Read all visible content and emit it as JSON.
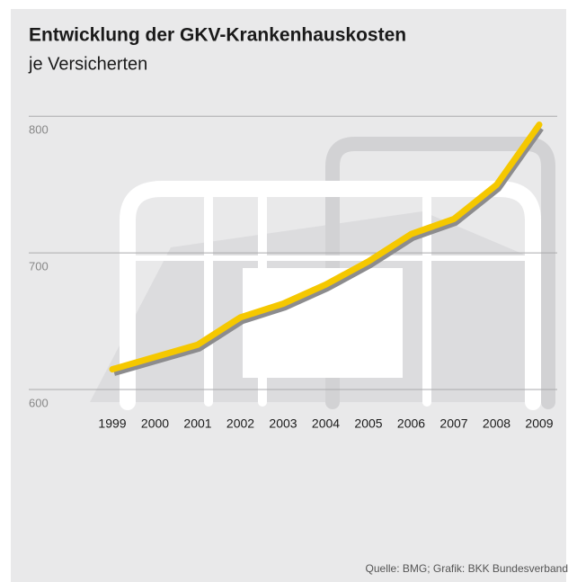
{
  "chart_data": {
    "type": "line",
    "title": "Entwicklung der GKV-Krankenhauskosten",
    "subtitle": "je Versicherten",
    "source": "Quelle: BMG; Grafik: BKK Bundesverband",
    "categories": [
      "1999",
      "2000",
      "2001",
      "2002",
      "2003",
      "2004",
      "2005",
      "2006",
      "2007",
      "2008",
      "2009"
    ],
    "values": [
      624,
      633,
      642,
      662,
      672,
      686,
      703,
      723,
      734,
      759,
      803
    ],
    "color": "#f5c800",
    "ylim": [
      600,
      810
    ],
    "yticks": [
      600,
      700,
      800
    ],
    "grid": true
  }
}
